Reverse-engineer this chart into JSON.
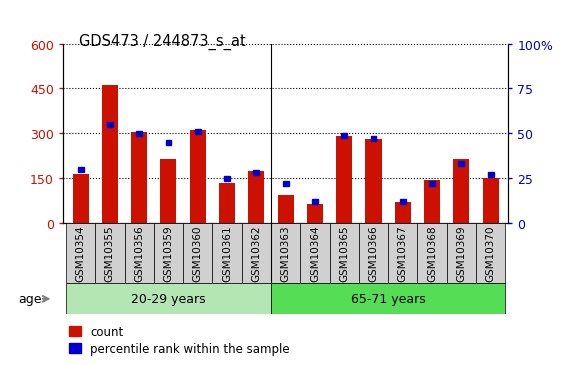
{
  "title": "GDS473 / 244873_s_at",
  "samples": [
    "GSM10354",
    "GSM10355",
    "GSM10356",
    "GSM10359",
    "GSM10360",
    "GSM10361",
    "GSM10362",
    "GSM10363",
    "GSM10364",
    "GSM10365",
    "GSM10366",
    "GSM10367",
    "GSM10368",
    "GSM10369",
    "GSM10370"
  ],
  "counts": [
    165,
    460,
    305,
    215,
    310,
    135,
    175,
    95,
    65,
    290,
    280,
    70,
    145,
    215,
    150
  ],
  "percentiles": [
    30,
    55,
    50,
    45,
    51,
    25,
    28,
    22,
    12,
    49,
    47,
    12,
    22,
    33,
    27
  ],
  "bar_color": "#cc1100",
  "sq_color": "#0000cc",
  "left_ylim": [
    0,
    600
  ],
  "right_ylim": [
    0,
    100
  ],
  "left_ticks": [
    0,
    150,
    300,
    450,
    600
  ],
  "right_ticks": [
    0,
    25,
    50,
    75,
    100
  ],
  "right_tick_labels": [
    "0",
    "25",
    "50",
    "75",
    "100%"
  ],
  "group1_label": "20-29 years",
  "group2_label": "65-71 years",
  "group1_count": 7,
  "age_label": "age",
  "legend_count": "count",
  "legend_pct": "percentile rank within the sample",
  "group1_color": "#b3e6b3",
  "group2_color": "#55dd55",
  "tick_bg_color": "#d0d0d0",
  "left_axis_color": "#cc1100",
  "right_axis_color": "#0000cc"
}
